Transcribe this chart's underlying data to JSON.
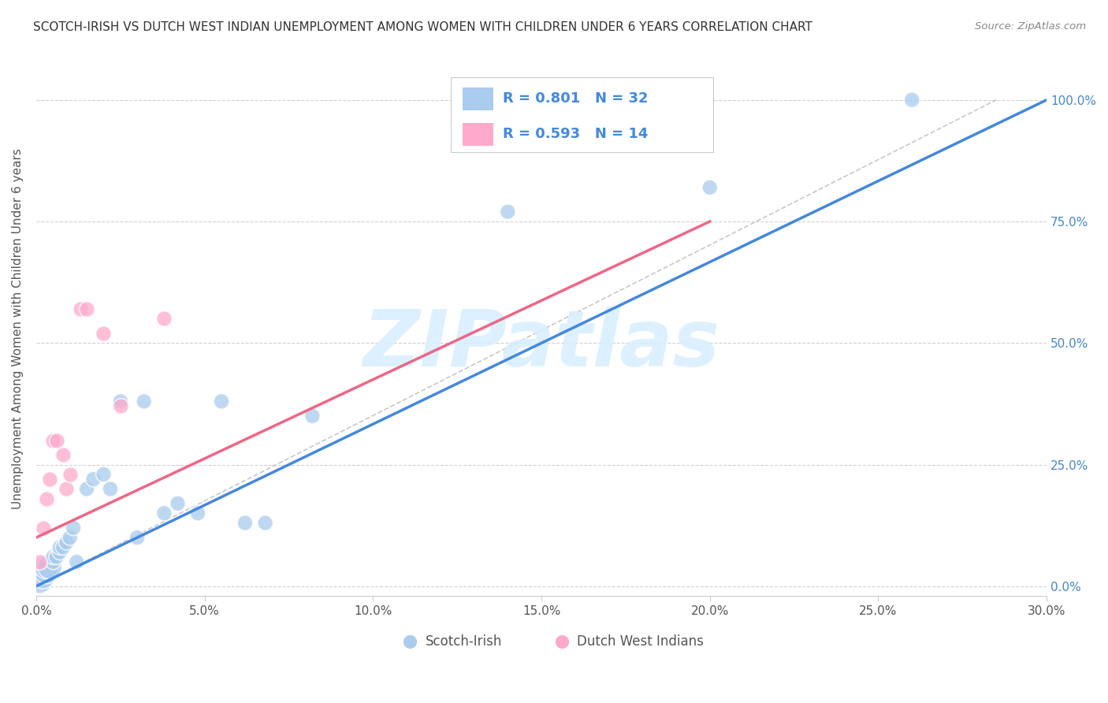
{
  "title": "SCOTCH-IRISH VS DUTCH WEST INDIAN UNEMPLOYMENT AMONG WOMEN WITH CHILDREN UNDER 6 YEARS CORRELATION CHART",
  "source": "Source: ZipAtlas.com",
  "ylabel": "Unemployment Among Women with Children Under 6 years",
  "x_tick_labels": [
    "0.0%",
    "5.0%",
    "10.0%",
    "15.0%",
    "20.0%",
    "25.0%",
    "30.0%"
  ],
  "y_tick_labels": [
    "0.0%",
    "25.0%",
    "50.0%",
    "75.0%",
    "100.0%"
  ],
  "xlim": [
    0.0,
    0.3
  ],
  "ylim": [
    -0.02,
    1.08
  ],
  "legend_label_1": "Scotch-Irish",
  "legend_label_2": "Dutch West Indians",
  "R1": 0.801,
  "N1": 32,
  "R2": 0.593,
  "N2": 14,
  "color_blue": "#AACCEE",
  "color_pink": "#FFAACC",
  "color_blue_line": "#4488DD",
  "color_pink_line": "#EE6688",
  "watermark_color": "#D8EEFF",
  "watermark": "ZIPatlas",
  "scotch_irish_x": [
    0.001,
    0.002,
    0.003,
    0.004,
    0.005,
    0.005,
    0.006,
    0.007,
    0.008,
    0.009,
    0.01,
    0.011,
    0.012,
    0.013,
    0.015,
    0.017,
    0.02,
    0.022,
    0.025,
    0.028,
    0.032,
    0.038,
    0.042,
    0.048,
    0.055,
    0.06,
    0.065,
    0.07,
    0.08,
    0.14,
    0.2,
    0.26
  ],
  "scotch_irish_y": [
    0.01,
    0.02,
    0.03,
    0.04,
    0.05,
    0.06,
    0.07,
    0.07,
    0.08,
    0.09,
    0.1,
    0.12,
    0.05,
    0.14,
    0.22,
    0.2,
    0.23,
    0.2,
    0.36,
    0.36,
    0.38,
    0.15,
    0.16,
    0.14,
    0.38,
    0.12,
    0.14,
    0.14,
    0.35,
    0.77,
    0.82,
    1.0
  ],
  "dutch_west_indian_x": [
    0.001,
    0.002,
    0.003,
    0.004,
    0.005,
    0.006,
    0.008,
    0.009,
    0.01,
    0.013,
    0.015,
    0.02,
    0.025,
    0.038
  ],
  "dutch_west_indian_y": [
    0.05,
    0.1,
    0.17,
    0.22,
    0.28,
    0.3,
    0.3,
    0.22,
    0.23,
    0.57,
    0.57,
    0.52,
    0.37,
    0.55
  ],
  "blue_line_x": [
    0.0,
    0.3
  ],
  "blue_line_y": [
    0.0,
    1.0
  ],
  "pink_line_x": [
    0.0,
    0.2
  ],
  "pink_line_y": [
    0.1,
    0.75
  ],
  "ref_line_x": [
    0.0,
    0.3
  ],
  "ref_line_y": [
    0.0,
    1.0
  ]
}
